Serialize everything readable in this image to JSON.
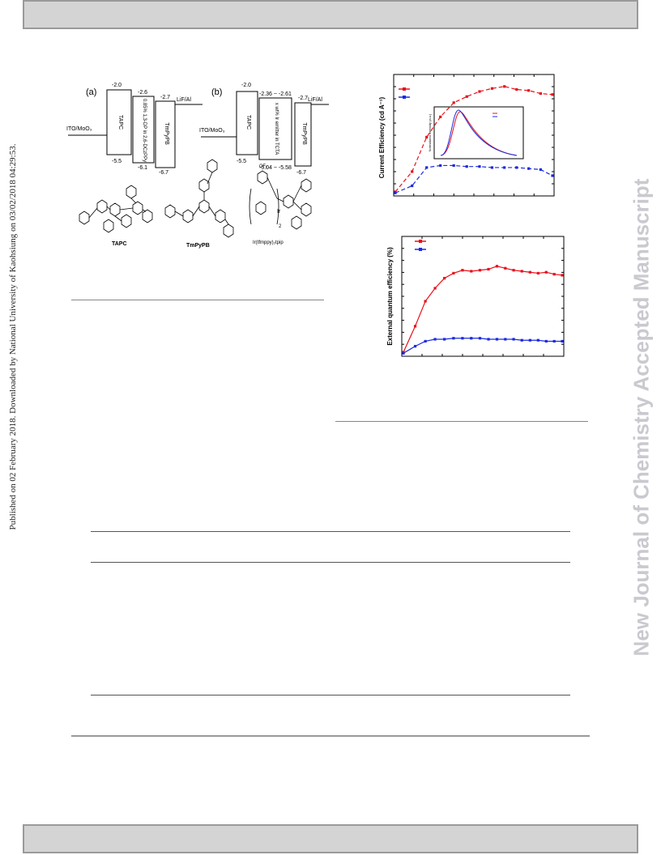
{
  "margin": {
    "left_note": "Published on 02 February 2018. Downloaded by National University of Kaohsiung on 03/02/2018 04:29:53.",
    "right_watermark": "New Journal of Chemistry Accepted Manuscript"
  },
  "figure_left": {
    "panel_a": {
      "label": "(a)",
      "levels": [
        "-2.0",
        "-2.6",
        "-2.7",
        "-5.5",
        "-6.1",
        "-6.7"
      ],
      "layers": [
        "TAPC",
        "0.85% 1,3-DP in 2,6-DCzPPy",
        "TmPyPB"
      ],
      "anode": "ITO/MoO₃",
      "cathode": "LiF/Al"
    },
    "panel_b": {
      "label": "(b)",
      "levels": [
        "-2.0",
        "-2.36 ~ -2.61",
        "-2.7",
        "-5.5",
        "-5.04 ~ -5.58",
        "-6.7"
      ],
      "layers": [
        "TAPC",
        "x wt% Ir emitter in TCTA",
        "TmPyPB"
      ],
      "anode": "ITO/MoO₃",
      "cathode": "LiF/Al"
    },
    "structures": [
      "TAPC",
      "TmPyPB",
      "Ir(tfmppy)₂tpip"
    ],
    "cf3_label": "CF₃",
    "ir_label": "Ir",
    "sub_label": "2"
  },
  "chart_data": [
    {
      "type": "line",
      "ylabel": "Current Efficiency (cd A⁻¹)",
      "xlabel": "",
      "series": [
        {
          "color": "#e8101a",
          "values": [
            4,
            24,
            58,
            78,
            92,
            98,
            103,
            106,
            108,
            105,
            104,
            101,
            100
          ]
        },
        {
          "color": "#1a2ae0",
          "values": [
            3,
            10,
            28,
            30,
            30,
            29,
            29,
            28,
            28,
            28,
            27,
            26,
            20
          ]
        }
      ],
      "inset": {
        "ylabel": "Normalized Intensity (a.u.)",
        "series_colors": [
          "#e8101a",
          "#1a2ae0"
        ]
      }
    },
    {
      "type": "line",
      "ylabel": "External quantum efficiency (%)",
      "xlabel": "",
      "series": [
        {
          "color": "#e8101a",
          "values": [
            4,
            30,
            55,
            68,
            78,
            83,
            86,
            85,
            86,
            87,
            90,
            88,
            86,
            85,
            84,
            83,
            84,
            82,
            81
          ]
        },
        {
          "color": "#1a2ae0",
          "values": [
            3,
            10,
            15,
            17,
            17,
            18,
            18,
            18,
            18,
            17,
            17,
            17,
            17,
            16,
            16,
            16,
            15,
            15,
            15
          ]
        }
      ]
    }
  ]
}
